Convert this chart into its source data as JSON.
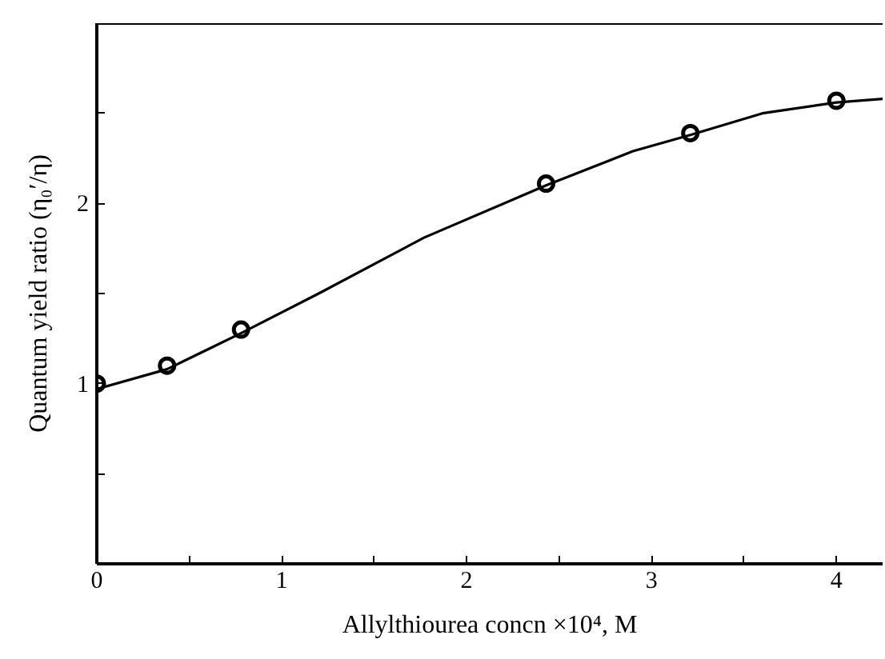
{
  "chart_data": {
    "type": "scatter",
    "xlabel": "Allylthiourea concn ×10⁴, M",
    "ylabel": "Quantum yield ratio (η₀′/η)",
    "xlim": [
      0,
      4.25
    ],
    "ylim": [
      0,
      3.0
    ],
    "xticks": [
      0,
      {
        "value": 0.5,
        "label": null
      },
      1,
      {
        "value": 1.5,
        "label": null
      },
      2,
      {
        "value": 2.5,
        "label": null
      },
      3,
      {
        "value": 3.5,
        "label": null
      },
      4
    ],
    "yticks": [
      {
        "value": 0.5,
        "label": null
      },
      1,
      {
        "value": 1.5,
        "label": null
      },
      2,
      {
        "value": 2.5,
        "label": null
      }
    ],
    "grid": false,
    "marker": "circle",
    "series": [
      {
        "color": "#000000",
        "x": [
          0,
          0.38,
          0.78,
          2.43,
          3.21,
          4.0
        ],
        "values": [
          1.0,
          1.1,
          1.3,
          2.11,
          2.39,
          2.57
        ]
      },
      {
        "type": "line",
        "color": "#000000",
        "marker": "none",
        "line_style": "solid",
        "x": [
          0,
          0.38,
          0.78,
          1.2,
          1.77,
          2.43,
          2.9,
          3.21,
          3.6,
          4.0,
          4.25
        ],
        "values": [
          0.97,
          1.08,
          1.28,
          1.5,
          1.81,
          2.1,
          2.29,
          2.38,
          2.5,
          2.56,
          2.58
        ]
      }
    ]
  }
}
